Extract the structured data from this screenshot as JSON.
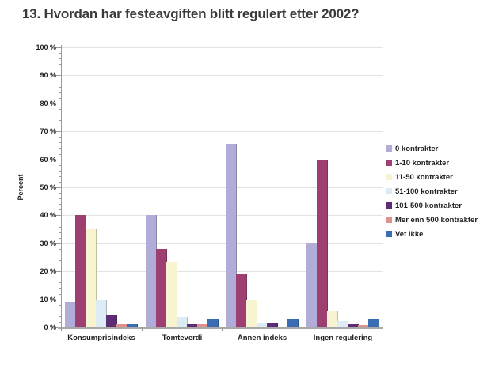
{
  "title": "13. Hvordan har festeavgiften blitt regulert etter 2002?",
  "chart_data": {
    "type": "bar",
    "title": "13. Hvordan har festeavgiften blitt regulert etter 2002?",
    "xlabel": "",
    "ylabel": "Percent",
    "ylim": [
      0,
      100
    ],
    "ytick_step": 10,
    "ytick_minor_step": 2,
    "ytick_suffix": " %",
    "grid": true,
    "legend_position": "right",
    "categories": [
      "Konsumprisindeks",
      "Tomteverdi",
      "Annen indeks",
      "Ingen regulering"
    ],
    "series": [
      {
        "name": "0 kontrakter",
        "color": "#b1acd8",
        "values": [
          9,
          40,
          65.5,
          30
        ]
      },
      {
        "name": "1-10 kontrakter",
        "color": "#9e3f72",
        "values": [
          40,
          28,
          19,
          59.5
        ]
      },
      {
        "name": "11-50 kontrakter",
        "color": "#f8f3d1",
        "values": [
          35,
          23.5,
          10,
          5.8
        ]
      },
      {
        "name": "51-100 kontrakter",
        "color": "#dcebf4",
        "values": [
          10,
          3.8,
          1.5,
          2.3
        ]
      },
      {
        "name": "101-500 kontrakter",
        "color": "#5c2d72",
        "values": [
          4.3,
          1.2,
          1.8,
          1
        ]
      },
      {
        "name": "Mer enn 500 kontrakter",
        "color": "#e0908d",
        "values": [
          1.2,
          1,
          0,
          0.8
        ]
      },
      {
        "name": "Vet ikke",
        "color": "#3a6db4",
        "values": [
          1.2,
          2.8,
          2.8,
          3.2
        ]
      }
    ]
  }
}
